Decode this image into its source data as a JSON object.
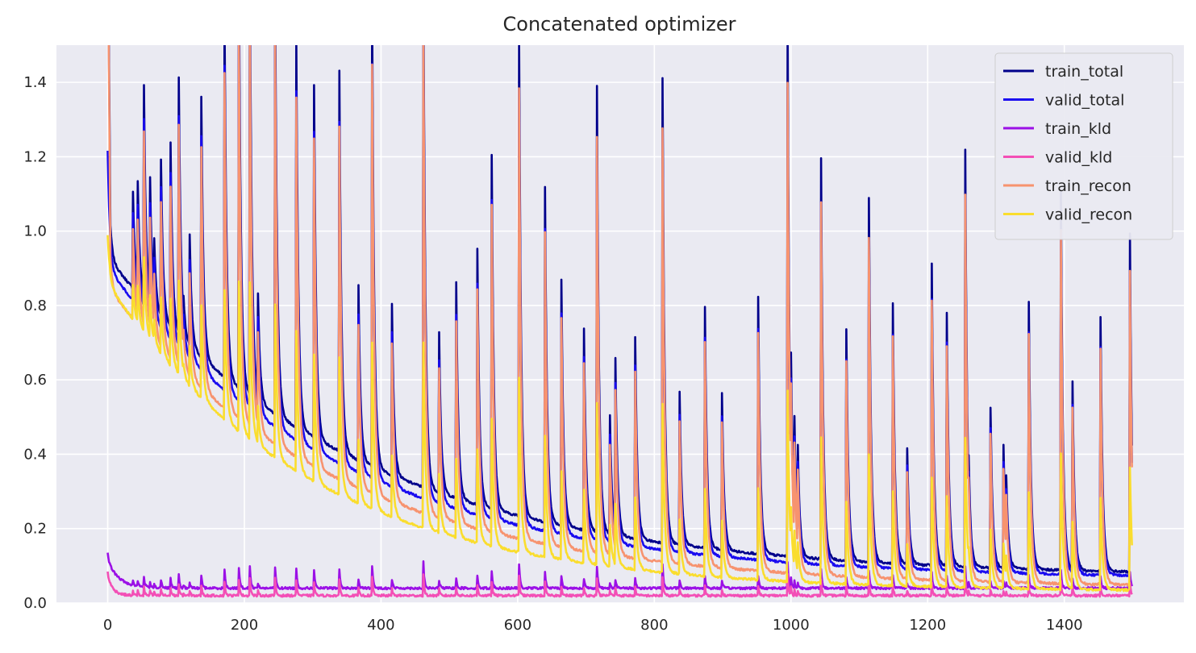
{
  "chart_data": {
    "type": "line",
    "title": "Concatenated optimizer",
    "xlabel": "",
    "ylabel": "",
    "xlim": [
      -75,
      1575
    ],
    "ylim": [
      0,
      1.5
    ],
    "x_ticks": [
      0,
      200,
      400,
      600,
      800,
      1000,
      1200,
      1400
    ],
    "y_ticks": [
      0.0,
      0.2,
      0.4,
      0.6,
      0.8,
      1.0,
      1.2,
      1.4
    ],
    "grid": true,
    "legend_position": "top-right",
    "background": "#eaeaf2",
    "x_points": 1500,
    "restarts": [
      {
        "x": 0,
        "h": 0.35
      },
      {
        "x": 37,
        "h": 0.26
      },
      {
        "x": 44,
        "h": 0.3
      },
      {
        "x": 53,
        "h": 0.58
      },
      {
        "x": 62,
        "h": 0.35
      },
      {
        "x": 68,
        "h": 0.2
      },
      {
        "x": 78,
        "h": 0.43
      },
      {
        "x": 92,
        "h": 0.5
      },
      {
        "x": 104,
        "h": 0.7
      },
      {
        "x": 111,
        "h": 0.12
      },
      {
        "x": 120,
        "h": 0.3
      },
      {
        "x": 137,
        "h": 0.7
      },
      {
        "x": 171,
        "h": 0.97
      },
      {
        "x": 192,
        "h": 1.12
      },
      {
        "x": 208,
        "h": 1.18
      },
      {
        "x": 220,
        "h": 0.29
      },
      {
        "x": 245,
        "h": 1.15
      },
      {
        "x": 276,
        "h": 1.04
      },
      {
        "x": 302,
        "h": 0.95
      },
      {
        "x": 339,
        "h": 1.02
      },
      {
        "x": 367,
        "h": 0.47
      },
      {
        "x": 387,
        "h": 1.24
      },
      {
        "x": 416,
        "h": 0.46
      },
      {
        "x": 462,
        "h": 1.39
      },
      {
        "x": 485,
        "h": 0.43
      },
      {
        "x": 510,
        "h": 0.58
      },
      {
        "x": 541,
        "h": 0.69
      },
      {
        "x": 562,
        "h": 0.95
      },
      {
        "x": 602,
        "h": 1.3
      },
      {
        "x": 640,
        "h": 0.9
      },
      {
        "x": 664,
        "h": 0.66
      },
      {
        "x": 697,
        "h": 0.54
      },
      {
        "x": 716,
        "h": 1.2
      },
      {
        "x": 735,
        "h": 0.32
      },
      {
        "x": 743,
        "h": 0.48
      },
      {
        "x": 772,
        "h": 0.54
      },
      {
        "x": 812,
        "h": 1.25
      },
      {
        "x": 837,
        "h": 0.41
      },
      {
        "x": 874,
        "h": 0.65
      },
      {
        "x": 899,
        "h": 0.42
      },
      {
        "x": 952,
        "h": 0.69
      },
      {
        "x": 995,
        "h": 1.42
      },
      {
        "x": 1000,
        "h": 0.55
      },
      {
        "x": 1005,
        "h": 0.38
      },
      {
        "x": 1010,
        "h": 0.3
      },
      {
        "x": 1044,
        "h": 1.08
      },
      {
        "x": 1081,
        "h": 0.62
      },
      {
        "x": 1114,
        "h": 0.98
      },
      {
        "x": 1149,
        "h": 0.7
      },
      {
        "x": 1170,
        "h": 0.31
      },
      {
        "x": 1206,
        "h": 0.81
      },
      {
        "x": 1228,
        "h": 0.68
      },
      {
        "x": 1255,
        "h": 1.12
      },
      {
        "x": 1260,
        "h": 0.3
      },
      {
        "x": 1292,
        "h": 0.43
      },
      {
        "x": 1311,
        "h": 0.33
      },
      {
        "x": 1315,
        "h": 0.25
      },
      {
        "x": 1348,
        "h": 0.72
      },
      {
        "x": 1395,
        "h": 1.02
      },
      {
        "x": 1412,
        "h": 0.51
      },
      {
        "x": 1453,
        "h": 0.68
      },
      {
        "x": 1496,
        "h": 0.91
      }
    ],
    "series": [
      {
        "name": "train_total",
        "color": "#00008b",
        "start": 0.93,
        "end": 0.07,
        "k": 0.00275,
        "spike": 1.0,
        "kld": false
      },
      {
        "name": "valid_total",
        "color": "#1a0cf0",
        "start": 0.9,
        "end": 0.063,
        "k": 0.0029,
        "spike": 0.9,
        "kld": false
      },
      {
        "name": "train_kld",
        "color": "#9b10e6",
        "start": 0.115,
        "end": 0.04,
        "k": 0.01,
        "spike": 0.05,
        "kld": true
      },
      {
        "name": "valid_kld",
        "color": "#f34fb6",
        "start": 0.07,
        "end": 0.02,
        "k": 0.02,
        "spike": 0.04,
        "kld": true
      },
      {
        "name": "train_recon",
        "color": "#f7936f",
        "start": 0.85,
        "end": 0.04,
        "k": 0.003,
        "spike": 0.93,
        "kld": false
      },
      {
        "name": "valid_recon",
        "color": "#fadd2e",
        "start": 0.86,
        "end": 0.03,
        "k": 0.0034,
        "spike": 0.36,
        "kld": false
      }
    ]
  }
}
